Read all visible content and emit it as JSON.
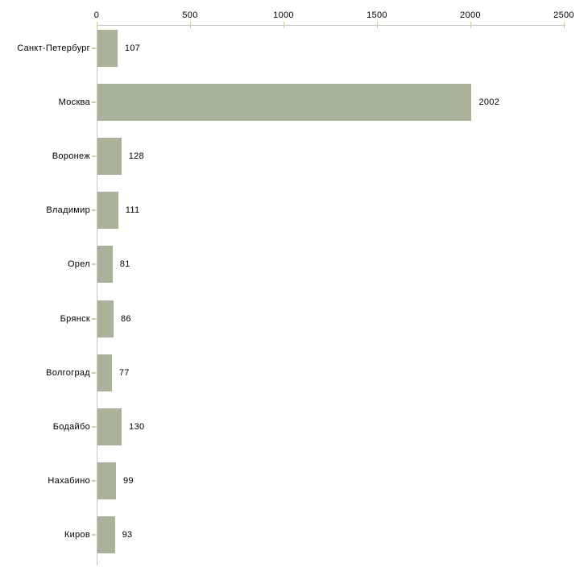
{
  "chart_data": {
    "type": "bar",
    "orientation": "horizontal",
    "title": "",
    "xlabel": "",
    "ylabel": "",
    "categories": [
      "Санкт-Петербург",
      "Москва",
      "Воронеж",
      "Владимир",
      "Орел",
      "Брянск",
      "Волгоград",
      "Бодайбо",
      "Нахабино",
      "Киров"
    ],
    "values": [
      107,
      2002,
      128,
      111,
      81,
      86,
      77,
      130,
      99,
      93
    ],
    "xlim": [
      0,
      2500
    ],
    "x_ticks": [
      "0",
      "500",
      "1000",
      "1500",
      "2000",
      "2500"
    ],
    "x_tick_values": [
      0,
      500,
      1000,
      1500,
      2000,
      2500
    ],
    "grid": false,
    "legend": "none",
    "value_labels_shown": true,
    "colors": {
      "bar": "#abb29a",
      "axis_line": "#c5c5c5",
      "tick_mark": "#c9c9a3",
      "category_tick_mark": "#cfcfad",
      "text": "#000000",
      "background": "#ffffff"
    }
  }
}
